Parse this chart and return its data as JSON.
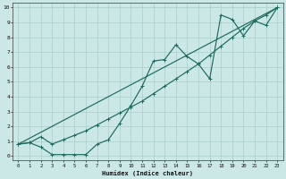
{
  "xlabel": "Humidex (Indice chaleur)",
  "bg_color": "#cce8e6",
  "grid_color": "#aacfcc",
  "line_color": "#1a6b5e",
  "xlim": [
    -0.5,
    23.5
  ],
  "ylim": [
    -0.3,
    10.3
  ],
  "xticks": [
    0,
    1,
    2,
    3,
    4,
    5,
    6,
    7,
    8,
    9,
    10,
    11,
    12,
    13,
    14,
    15,
    16,
    17,
    18,
    19,
    20,
    21,
    22,
    23
  ],
  "yticks": [
    0,
    1,
    2,
    3,
    4,
    5,
    6,
    7,
    8,
    9,
    10
  ],
  "line1_x": [
    0,
    1,
    2,
    3,
    4,
    5,
    6,
    7,
    8,
    9,
    10,
    11,
    12,
    13,
    14,
    15,
    16,
    17,
    18,
    19,
    20,
    21,
    22,
    23
  ],
  "line1_y": [
    0.8,
    0.9,
    0.6,
    0.1,
    0.1,
    0.1,
    0.1,
    0.8,
    1.1,
    2.2,
    3.4,
    4.7,
    6.4,
    6.5,
    7.5,
    6.7,
    6.2,
    5.2,
    9.5,
    9.2,
    8.1,
    9.1,
    8.8,
    10.0
  ],
  "line2_x": [
    0,
    1,
    2,
    3,
    4,
    5,
    6,
    7,
    8,
    9,
    10,
    11,
    12,
    13,
    14,
    15,
    16,
    17,
    18,
    19,
    20,
    21,
    22,
    23
  ],
  "line2_y": [
    0.8,
    0.9,
    1.3,
    0.8,
    1.1,
    1.4,
    1.7,
    2.1,
    2.5,
    2.9,
    3.3,
    3.7,
    4.2,
    4.7,
    5.2,
    5.7,
    6.2,
    6.8,
    7.4,
    8.0,
    8.6,
    9.1,
    9.5,
    10.0
  ],
  "line3_x": [
    0,
    23
  ],
  "line3_y": [
    0.8,
    10.0
  ],
  "figsize": [
    3.2,
    2.0
  ],
  "dpi": 100
}
